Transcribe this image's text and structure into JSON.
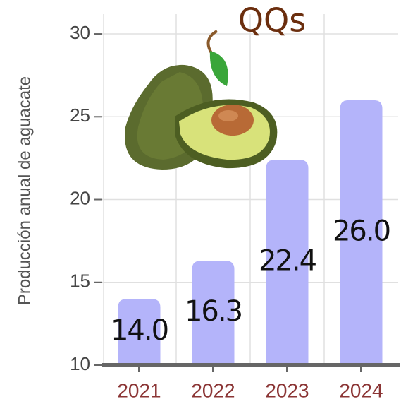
{
  "chart_data": {
    "type": "bar",
    "title": "QQs",
    "y_label": "Producción anual de aguacate",
    "categories": [
      "2021",
      "2022",
      "2023",
      "2024"
    ],
    "values": [
      14.0,
      16.3,
      22.4,
      26.0
    ],
    "value_labels": [
      "14.0",
      "16.3",
      "22.4",
      "26.0"
    ],
    "color": "#b4b4fa",
    "ylim": [
      10,
      31
    ],
    "yticks": [
      10,
      15,
      20,
      25,
      30
    ],
    "grid": true
  }
}
